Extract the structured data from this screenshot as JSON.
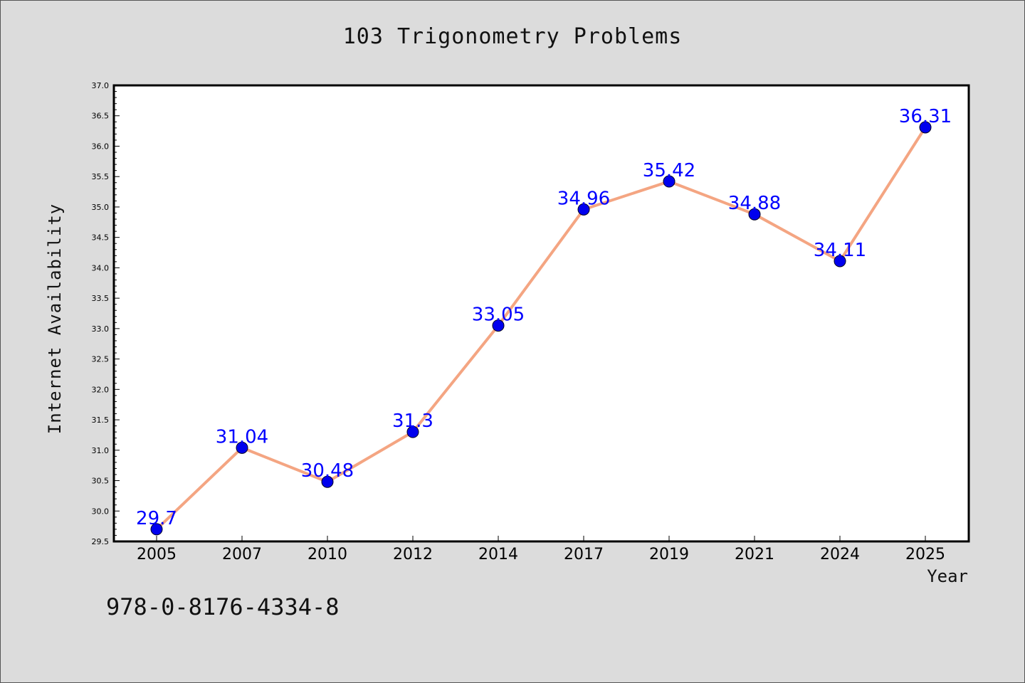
{
  "chart_data": {
    "type": "line",
    "title": "103 Trigonometry Problems",
    "xlabel": "Year",
    "ylabel": "Internet Availability",
    "categories": [
      "2005",
      "2007",
      "2010",
      "2012",
      "2014",
      "2017",
      "2019",
      "2021",
      "2024",
      "2025"
    ],
    "values": [
      29.7,
      31.04,
      30.48,
      31.3,
      33.05,
      34.96,
      35.42,
      34.88,
      34.11,
      36.31
    ],
    "data_labels": [
      "29.7",
      "31.04",
      "30.48",
      "31.3",
      "33.05",
      "34.96",
      "35.42",
      "34.88",
      "34.11",
      "36.31"
    ],
    "ylim": [
      29.5,
      37.0
    ],
    "yticks": [
      "29.5",
      "30.0",
      "30.5",
      "31.0",
      "31.5",
      "32.0",
      "32.5",
      "33.0",
      "33.5",
      "34.0",
      "34.5",
      "35.0",
      "35.5",
      "36.0",
      "36.5",
      "37.0"
    ],
    "grid": false,
    "line_color": "#f4a582",
    "marker_color": "#0000ee",
    "label_color": "#0000ff"
  },
  "footer": {
    "code": "978-0-8176-4334-8"
  }
}
